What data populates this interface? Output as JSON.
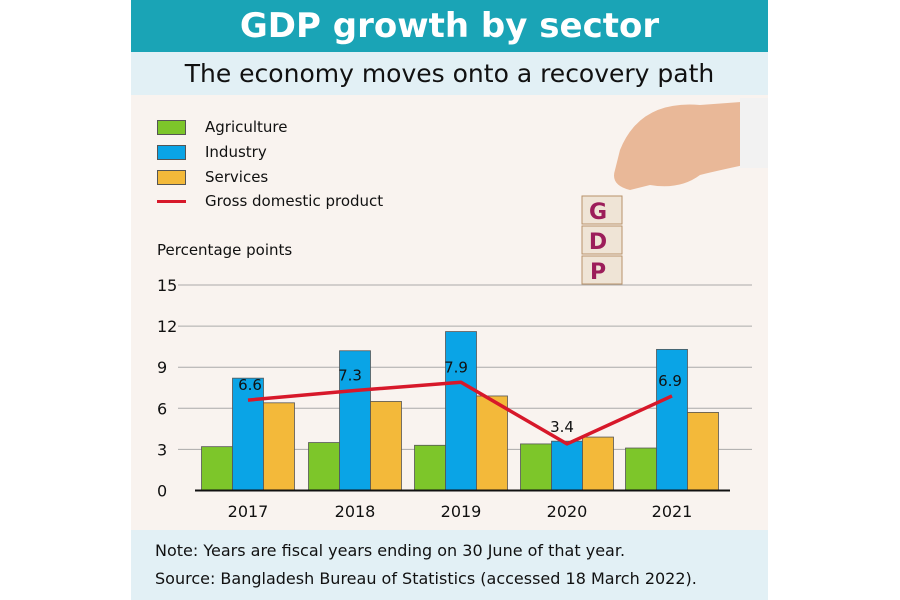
{
  "title": "GDP growth by sector",
  "subtitle": "The economy moves onto a recovery path",
  "footer": {
    "note": "Note: Years are fiscal years ending on 30 June of that year.",
    "source": "Source: Bangladesh Bureau of Statistics (accessed 18 March 2022)."
  },
  "illustration": {
    "blocks": [
      "G",
      "D",
      "P"
    ]
  },
  "chart_data": {
    "type": "bar",
    "ylabel": "Percentage points",
    "ylim": [
      0,
      15
    ],
    "yticks": [
      0,
      3,
      6,
      9,
      12,
      15
    ],
    "grid": true,
    "legend_position": "top-left",
    "categories": [
      "2017",
      "2018",
      "2019",
      "2020",
      "2021"
    ],
    "series": [
      {
        "name": "Agriculture",
        "type": "bar",
        "color": "#7dc62a",
        "values": [
          3.2,
          3.5,
          3.3,
          3.4,
          3.1
        ]
      },
      {
        "name": "Industry",
        "type": "bar",
        "color": "#0aa4e6",
        "values": [
          8.2,
          10.2,
          11.6,
          3.6,
          10.3
        ]
      },
      {
        "name": "Services",
        "type": "bar",
        "color": "#f3b93a",
        "values": [
          6.4,
          6.5,
          6.9,
          3.9,
          5.7
        ]
      },
      {
        "name": "Gross domestic product",
        "type": "line",
        "color": "#d7182a",
        "values": [
          6.6,
          7.3,
          7.9,
          3.4,
          6.9
        ],
        "labels": [
          "6.6",
          "7.3",
          "7.9",
          "3.4",
          "6.9"
        ]
      }
    ]
  }
}
